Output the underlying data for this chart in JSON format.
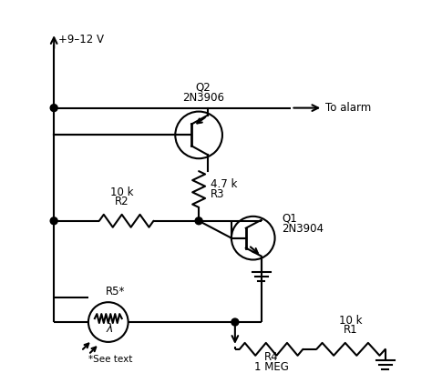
{
  "bg_color": "#ffffff",
  "fg_color": "#000000",
  "vcc_label": "+9–12 V",
  "alarm_label": "To alarm",
  "q2_label1": "Q2",
  "q2_label2": "2N3906",
  "q1_label1": "Q1",
  "q1_label2": "2N3904",
  "r2_label1": "R2",
  "r2_label2": "10 k",
  "r3_label1": "R3",
  "r3_label2": "4.7 k",
  "r4_label1": "R4",
  "r4_label2": "1 MEG",
  "r5_label1": "R5*",
  "r1_label1": "R1",
  "r1_label2": "10 k",
  "see_text": "*See text"
}
